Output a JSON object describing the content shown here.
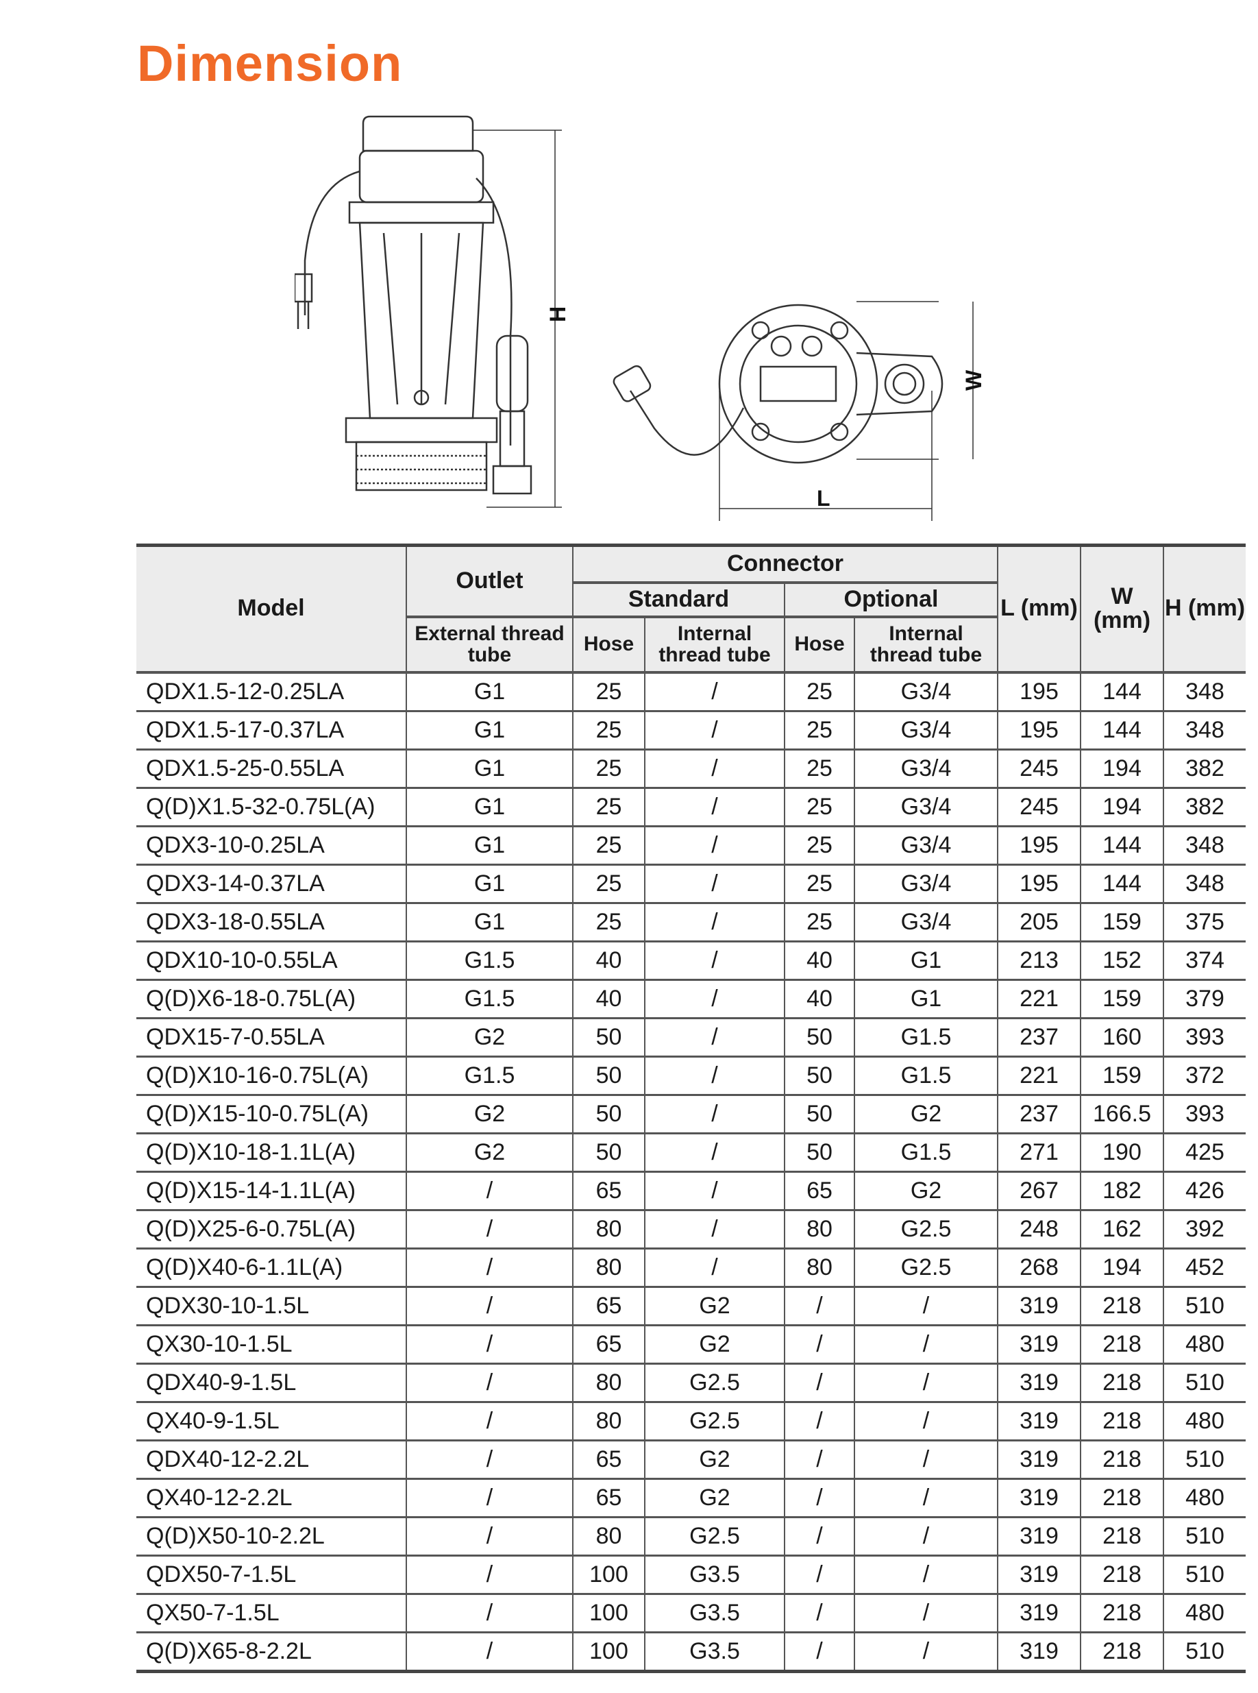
{
  "title": "Dimension",
  "accent_color": "#f06a28",
  "diagram_labels": {
    "height": "H",
    "width": "W",
    "length": "L"
  },
  "table": {
    "headers": {
      "model": "Model",
      "outlet": "Outlet",
      "connector": "Connector",
      "standard": "Standard",
      "optional": "Optional",
      "external_thread_tube": "External thread tube",
      "hose": "Hose",
      "internal_thread_tube": "Internal thread tube",
      "l": "L (mm)",
      "w": "W (mm)",
      "h": "H (mm)"
    },
    "rows": [
      [
        "QDX1.5-12-0.25LA",
        "G1",
        "25",
        "/",
        "25",
        "G3/4",
        "195",
        "144",
        "348"
      ],
      [
        "QDX1.5-17-0.37LA",
        "G1",
        "25",
        "/",
        "25",
        "G3/4",
        "195",
        "144",
        "348"
      ],
      [
        "QDX1.5-25-0.55LA",
        "G1",
        "25",
        "/",
        "25",
        "G3/4",
        "245",
        "194",
        "382"
      ],
      [
        "Q(D)X1.5-32-0.75L(A)",
        "G1",
        "25",
        "/",
        "25",
        "G3/4",
        "245",
        "194",
        "382"
      ],
      [
        "QDX3-10-0.25LA",
        "G1",
        "25",
        "/",
        "25",
        "G3/4",
        "195",
        "144",
        "348"
      ],
      [
        "QDX3-14-0.37LA",
        "G1",
        "25",
        "/",
        "25",
        "G3/4",
        "195",
        "144",
        "348"
      ],
      [
        "QDX3-18-0.55LA",
        "G1",
        "25",
        "/",
        "25",
        "G3/4",
        "205",
        "159",
        "375"
      ],
      [
        "QDX10-10-0.55LA",
        "G1.5",
        "40",
        "/",
        "40",
        "G1",
        "213",
        "152",
        "374"
      ],
      [
        "Q(D)X6-18-0.75L(A)",
        "G1.5",
        "40",
        "/",
        "40",
        "G1",
        "221",
        "159",
        "379"
      ],
      [
        "QDX15-7-0.55LA",
        "G2",
        "50",
        "/",
        "50",
        "G1.5",
        "237",
        "160",
        "393"
      ],
      [
        "Q(D)X10-16-0.75L(A)",
        "G1.5",
        "50",
        "/",
        "50",
        "G1.5",
        "221",
        "159",
        "372"
      ],
      [
        "Q(D)X15-10-0.75L(A)",
        "G2",
        "50",
        "/",
        "50",
        "G2",
        "237",
        "166.5",
        "393"
      ],
      [
        "Q(D)X10-18-1.1L(A)",
        "G2",
        "50",
        "/",
        "50",
        "G1.5",
        "271",
        "190",
        "425"
      ],
      [
        "Q(D)X15-14-1.1L(A)",
        "/",
        "65",
        "/",
        "65",
        "G2",
        "267",
        "182",
        "426"
      ],
      [
        "Q(D)X25-6-0.75L(A)",
        "/",
        "80",
        "/",
        "80",
        "G2.5",
        "248",
        "162",
        "392"
      ],
      [
        "Q(D)X40-6-1.1L(A)",
        "/",
        "80",
        "/",
        "80",
        "G2.5",
        "268",
        "194",
        "452"
      ],
      [
        "QDX30-10-1.5L",
        "/",
        "65",
        "G2",
        "/",
        "/",
        "319",
        "218",
        "510"
      ],
      [
        "QX30-10-1.5L",
        "/",
        "65",
        "G2",
        "/",
        "/",
        "319",
        "218",
        "480"
      ],
      [
        "QDX40-9-1.5L",
        "/",
        "80",
        "G2.5",
        "/",
        "/",
        "319",
        "218",
        "510"
      ],
      [
        "QX40-9-1.5L",
        "/",
        "80",
        "G2.5",
        "/",
        "/",
        "319",
        "218",
        "480"
      ],
      [
        "QDX40-12-2.2L",
        "/",
        "65",
        "G2",
        "/",
        "/",
        "319",
        "218",
        "510"
      ],
      [
        "QX40-12-2.2L",
        "/",
        "65",
        "G2",
        "/",
        "/",
        "319",
        "218",
        "480"
      ],
      [
        "Q(D)X50-10-2.2L",
        "/",
        "80",
        "G2.5",
        "/",
        "/",
        "319",
        "218",
        "510"
      ],
      [
        "QDX50-7-1.5L",
        "/",
        "100",
        "G3.5",
        "/",
        "/",
        "319",
        "218",
        "510"
      ],
      [
        "QX50-7-1.5L",
        "/",
        "100",
        "G3.5",
        "/",
        "/",
        "319",
        "218",
        "480"
      ],
      [
        "Q(D)X65-8-2.2L",
        "/",
        "100",
        "G3.5",
        "/",
        "/",
        "319",
        "218",
        "510"
      ]
    ]
  }
}
